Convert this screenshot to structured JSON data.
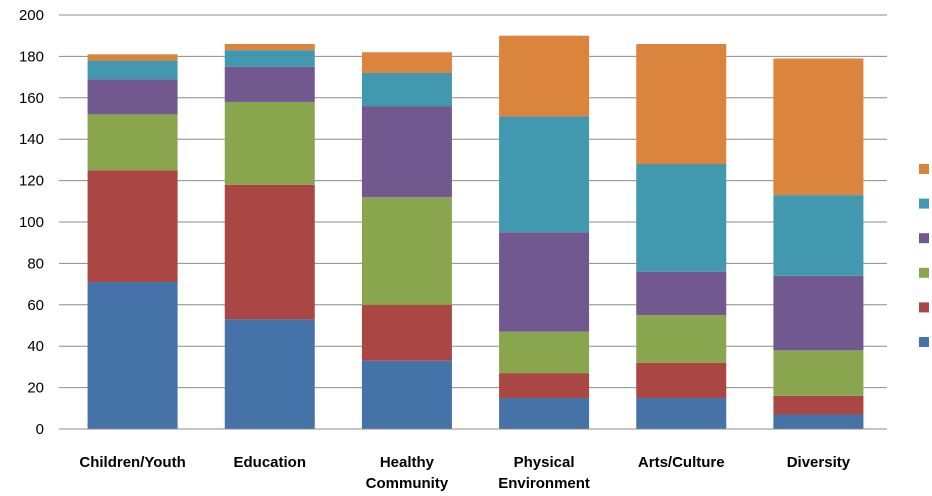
{
  "chart_data": {
    "type": "bar",
    "stacked": true,
    "title": "",
    "xlabel": "",
    "ylabel": "",
    "ylim": [
      0,
      200
    ],
    "yticks": [
      0,
      20,
      40,
      60,
      80,
      100,
      120,
      140,
      160,
      180,
      200
    ],
    "grid": true,
    "legend_position": "right",
    "categories": [
      "Children/Youth",
      "Education",
      "Healthy Community",
      "Physical Environment",
      "Arts/Culture",
      "Diversity"
    ],
    "category_label_lines": [
      [
        "Children/Youth"
      ],
      [
        "Education"
      ],
      [
        "Healthy",
        "Community"
      ],
      [
        "Physical",
        "Environment"
      ],
      [
        "Arts/Culture"
      ],
      [
        "Diversity"
      ]
    ],
    "series": [
      {
        "color": "#4572A7",
        "values": [
          71,
          53,
          33,
          15,
          15,
          7
        ]
      },
      {
        "color": "#AA4643",
        "values": [
          54,
          65,
          27,
          12,
          17,
          9
        ]
      },
      {
        "color": "#89A54E",
        "values": [
          27,
          40,
          52,
          20,
          23,
          22
        ]
      },
      {
        "color": "#71588F",
        "values": [
          17,
          17,
          44,
          48,
          21,
          36
        ]
      },
      {
        "color": "#4198AF",
        "values": [
          9,
          8,
          16,
          56,
          52,
          39
        ]
      },
      {
        "color": "#DB843D",
        "values": [
          3,
          3,
          10,
          39,
          58,
          66
        ]
      }
    ]
  }
}
